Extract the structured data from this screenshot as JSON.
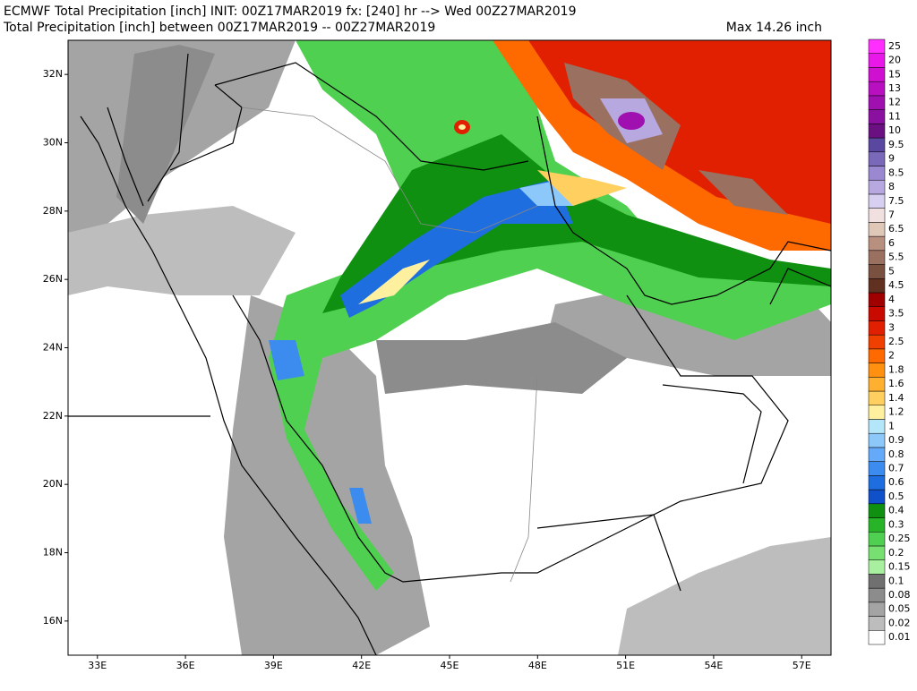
{
  "map": {
    "title": "ECMWF Total Precipitation [inch] INIT: 00Z17MAR2019 fx: [240] hr --> Wed 00Z27MAR2019",
    "subtitle": "Total Precipitation [inch] between 00Z17MAR2019 -- 00Z27MAR2019",
    "max_label": "Max 14.26 inch",
    "xlim": [
      32,
      58
    ],
    "ylim": [
      15,
      33
    ],
    "xticks": [
      {
        "value": 33,
        "label": "33E"
      },
      {
        "value": 36,
        "label": "36E"
      },
      {
        "value": 39,
        "label": "39E"
      },
      {
        "value": 42,
        "label": "42E"
      },
      {
        "value": 45,
        "label": "45E"
      },
      {
        "value": 48,
        "label": "48E"
      },
      {
        "value": 51,
        "label": "51E"
      },
      {
        "value": 54,
        "label": "54E"
      },
      {
        "value": 57,
        "label": "57E"
      }
    ],
    "yticks": [
      {
        "value": 16,
        "label": "16N"
      },
      {
        "value": 18,
        "label": "18N"
      },
      {
        "value": 20,
        "label": "20N"
      },
      {
        "value": 22,
        "label": "22N"
      },
      {
        "value": 24,
        "label": "24N"
      },
      {
        "value": 26,
        "label": "26N"
      },
      {
        "value": 28,
        "label": "28N"
      },
      {
        "value": 30,
        "label": "30N"
      },
      {
        "value": 32,
        "label": "32N"
      }
    ],
    "levels": [
      {
        "value": 0.01,
        "color": "#ffffff"
      },
      {
        "value": 0.02,
        "color": "#bdbdbd"
      },
      {
        "value": 0.05,
        "color": "#a4a4a4"
      },
      {
        "value": 0.08,
        "color": "#8c8c8c"
      },
      {
        "value": 0.1,
        "color": "#707070"
      },
      {
        "value": 0.15,
        "color": "#a8f0a0"
      },
      {
        "value": 0.2,
        "color": "#78e070"
      },
      {
        "value": 0.25,
        "color": "#50d050"
      },
      {
        "value": 0.3,
        "color": "#28b428"
      },
      {
        "value": 0.4,
        "color": "#109010"
      },
      {
        "value": 0.5,
        "color": "#1050c8"
      },
      {
        "value": 0.6,
        "color": "#1e6ee0"
      },
      {
        "value": 0.7,
        "color": "#3c8cf0"
      },
      {
        "value": 0.8,
        "color": "#64aaf8"
      },
      {
        "value": 0.9,
        "color": "#8cc8fa"
      },
      {
        "value": 1,
        "color": "#b4e6fa"
      },
      {
        "value": 1.2,
        "color": "#fff0a0"
      },
      {
        "value": 1.4,
        "color": "#ffd060"
      },
      {
        "value": 1.6,
        "color": "#ffb030"
      },
      {
        "value": 1.8,
        "color": "#ff9010"
      },
      {
        "value": 2,
        "color": "#ff6a00"
      },
      {
        "value": 2.5,
        "color": "#f04000"
      },
      {
        "value": 3,
        "color": "#e02000"
      },
      {
        "value": 3.5,
        "color": "#c80a00"
      },
      {
        "value": 4,
        "color": "#a00000"
      },
      {
        "value": 4.5,
        "color": "#603020"
      },
      {
        "value": 5,
        "color": "#7a5040"
      },
      {
        "value": 5.5,
        "color": "#9a7060"
      },
      {
        "value": 6,
        "color": "#b89080"
      },
      {
        "value": 6.5,
        "color": "#e0c8b8"
      },
      {
        "value": 7,
        "color": "#f0e0e0"
      },
      {
        "value": 7.5,
        "color": "#d8d0f0"
      },
      {
        "value": 8,
        "color": "#b8a8e0"
      },
      {
        "value": 8.5,
        "color": "#9a88d0"
      },
      {
        "value": 9,
        "color": "#7a68b8"
      },
      {
        "value": 9.5,
        "color": "#5a48a0"
      },
      {
        "value": 10,
        "color": "#6a1080"
      },
      {
        "value": 11,
        "color": "#8a10a0"
      },
      {
        "value": 12,
        "color": "#a010b0"
      },
      {
        "value": 13,
        "color": "#b810c0"
      },
      {
        "value": 15,
        "color": "#d010d0"
      },
      {
        "value": 20,
        "color": "#e818e8"
      },
      {
        "value": 25,
        "color": "#ff30ff"
      }
    ]
  }
}
